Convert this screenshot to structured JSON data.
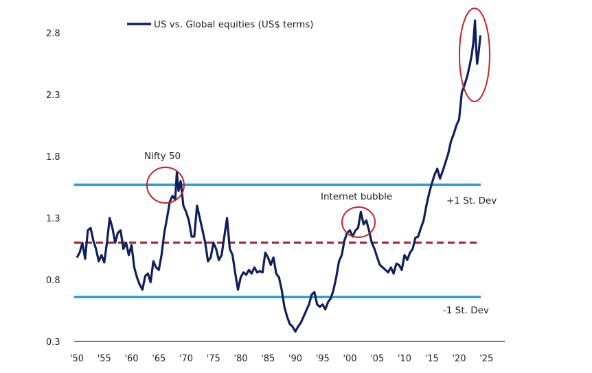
{
  "chart_data": {
    "type": "line",
    "title": "",
    "xlabel": "",
    "ylabel": "",
    "legend": {
      "label": "US vs. Global equities (US$ terms)",
      "placement": "top"
    },
    "xlim": [
      1950,
      2025
    ],
    "ylim": [
      0.3,
      2.8
    ],
    "x_ticks": [
      "'50",
      "'55",
      "'60",
      "'65",
      "'70",
      "'75",
      "'80",
      "'85",
      "'90",
      "'95",
      "'00",
      "'05",
      "'10",
      "'15",
      "'20",
      "'25"
    ],
    "y_ticks": [
      "0.3",
      "0.8",
      "1.3",
      "1.8",
      "2.3",
      "2.8"
    ],
    "series": [
      {
        "name": "US vs. Global equities (US$ terms)",
        "color": "#0f1f5c",
        "x": [
          1950,
          1950.5,
          1951,
          1951.5,
          1952,
          1952.5,
          1953,
          1953.5,
          1954,
          1954.5,
          1955,
          1955.5,
          1956,
          1956.5,
          1957,
          1957.5,
          1958,
          1958.5,
          1959,
          1959.5,
          1960,
          1960.5,
          1961,
          1961.5,
          1962,
          1962.5,
          1963,
          1963.5,
          1964,
          1964.5,
          1965,
          1965.5,
          1966,
          1966.5,
          1967,
          1967.5,
          1968,
          1968.3,
          1968.6,
          1969,
          1969.5,
          1970,
          1970.5,
          1971,
          1971.5,
          1972,
          1972.5,
          1973,
          1973.5,
          1974,
          1974.5,
          1975,
          1975.5,
          1976,
          1976.5,
          1977,
          1977.5,
          1978,
          1978.5,
          1979,
          1979.5,
          1980,
          1980.5,
          1981,
          1981.5,
          1982,
          1982.5,
          1983,
          1983.5,
          1984,
          1984.5,
          1985,
          1985.5,
          1986,
          1986.5,
          1987,
          1987.5,
          1988,
          1988.5,
          1989,
          1989.5,
          1990,
          1990.5,
          1991,
          1991.5,
          1992,
          1992.5,
          1993,
          1993.5,
          1994,
          1994.5,
          1995,
          1995.5,
          1996,
          1996.5,
          1997,
          1997.5,
          1998,
          1998.5,
          1999,
          1999.5,
          2000,
          2000.5,
          2001,
          2001.5,
          2002,
          2002.5,
          2003,
          2003.5,
          2004,
          2004.5,
          2005,
          2005.5,
          2006,
          2006.5,
          2007,
          2007.5,
          2008,
          2008.5,
          2009,
          2009.5,
          2010,
          2010.5,
          2011,
          2011.5,
          2012,
          2012.5,
          2013,
          2013.5,
          2014,
          2014.5,
          2015,
          2015.5,
          2016,
          2016.5,
          2017,
          2017.5,
          2018,
          2018.5,
          2019,
          2019.5,
          2020,
          2020.5,
          2021,
          2021.5,
          2022,
          2022.3,
          2022.6,
          2022.9,
          2023.1,
          2023.3,
          2023.6,
          2023.9
        ],
        "y": [
          0.98,
          1.02,
          1.1,
          0.97,
          1.2,
          1.22,
          1.12,
          1.05,
          0.95,
          1.0,
          0.94,
          1.1,
          1.3,
          1.22,
          1.1,
          1.18,
          1.2,
          1.05,
          1.1,
          1.0,
          1.08,
          0.9,
          0.82,
          0.76,
          0.72,
          0.83,
          0.85,
          0.78,
          0.95,
          0.9,
          0.88,
          1.0,
          1.18,
          1.3,
          1.43,
          1.48,
          1.45,
          1.67,
          1.52,
          1.6,
          1.4,
          1.35,
          1.28,
          1.15,
          1.15,
          1.4,
          1.3,
          1.2,
          1.1,
          0.95,
          0.98,
          1.1,
          1.05,
          0.96,
          1.0,
          1.15,
          1.3,
          1.05,
          1.0,
          0.85,
          0.72,
          0.82,
          0.86,
          0.84,
          0.88,
          0.85,
          0.9,
          0.86,
          0.87,
          0.86,
          1.02,
          0.98,
          0.92,
          0.98,
          0.85,
          0.82,
          0.72,
          0.58,
          0.5,
          0.44,
          0.42,
          0.38,
          0.42,
          0.45,
          0.5,
          0.55,
          0.6,
          0.68,
          0.7,
          0.6,
          0.58,
          0.6,
          0.56,
          0.62,
          0.65,
          0.72,
          0.82,
          0.95,
          1.0,
          1.12,
          1.18,
          1.2,
          1.15,
          1.2,
          1.22,
          1.35,
          1.25,
          1.28,
          1.2,
          1.1,
          1.05,
          0.98,
          0.92,
          0.9,
          0.88,
          0.86,
          0.9,
          0.85,
          0.93,
          0.92,
          0.88,
          1.0,
          0.96,
          1.02,
          1.05,
          1.14,
          1.15,
          1.22,
          1.28,
          1.4,
          1.5,
          1.58,
          1.65,
          1.7,
          1.62,
          1.68,
          1.75,
          1.82,
          1.92,
          1.98,
          2.05,
          2.1,
          2.32,
          2.38,
          2.45,
          2.55,
          2.62,
          2.72,
          2.9,
          2.7,
          2.55,
          2.65,
          2.78
        ]
      }
    ],
    "reference_lines": [
      {
        "label": "+1 St. Dev",
        "value": 1.57,
        "color": "#2aa0d6",
        "style": "solid"
      },
      {
        "label": "",
        "value": 1.1,
        "color": "#a42a3c",
        "style": "dashed"
      },
      {
        "label": "-1 St. Dev",
        "value": 0.66,
        "color": "#2aa0d6",
        "style": "solid"
      }
    ],
    "annotations": [
      {
        "text": "Nifty 50",
        "x": 1968,
        "y": 1.67
      },
      {
        "text": "Internet bubble",
        "x": 2002,
        "y": 1.35
      },
      {
        "text": "",
        "x": 2022.5,
        "y": 2.7
      }
    ]
  }
}
